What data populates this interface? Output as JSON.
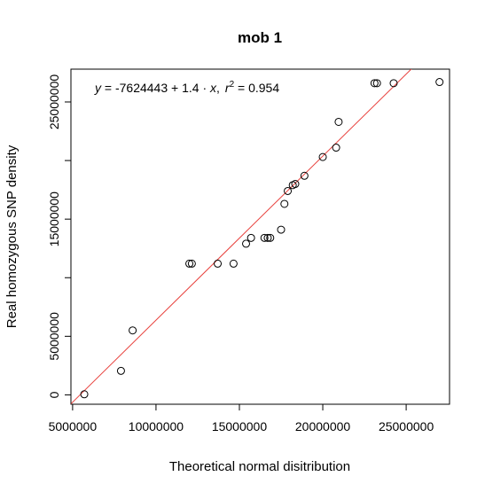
{
  "chart_data": {
    "type": "scatter",
    "title": "mob 1",
    "xlabel": "Theoretical normal disitribution",
    "ylabel": "Real homozygous SNP density",
    "xlim": [
      4900000,
      27600000
    ],
    "ylim": [
      -800000,
      27800000
    ],
    "xticks": [
      5000000,
      10000000,
      15000000,
      20000000,
      25000000
    ],
    "xtick_labels": [
      "5000000",
      "10000000",
      "15000000",
      "20000000",
      "25000000"
    ],
    "yticks": [
      0,
      5000000,
      15000000,
      25000000
    ],
    "ytick_labels": [
      "0",
      "5000000",
      "15000000",
      "25000000"
    ],
    "grid": false,
    "points": [
      {
        "x": 5700000,
        "y": 50000
      },
      {
        "x": 7900000,
        "y": 2050000
      },
      {
        "x": 8600000,
        "y": 5500000
      },
      {
        "x": 12000000,
        "y": 11200000
      },
      {
        "x": 12150000,
        "y": 11200000
      },
      {
        "x": 13700000,
        "y": 11200000
      },
      {
        "x": 14650000,
        "y": 11200000
      },
      {
        "x": 15400000,
        "y": 12900000
      },
      {
        "x": 15700000,
        "y": 13400000
      },
      {
        "x": 16500000,
        "y": 13400000
      },
      {
        "x": 16700000,
        "y": 13400000
      },
      {
        "x": 16850000,
        "y": 13400000
      },
      {
        "x": 17500000,
        "y": 14100000
      },
      {
        "x": 17700000,
        "y": 16300000
      },
      {
        "x": 17900000,
        "y": 17400000
      },
      {
        "x": 18200000,
        "y": 17900000
      },
      {
        "x": 18350000,
        "y": 18000000
      },
      {
        "x": 18900000,
        "y": 18700000
      },
      {
        "x": 20000000,
        "y": 20300000
      },
      {
        "x": 20800000,
        "y": 21100000
      },
      {
        "x": 20950000,
        "y": 23300000
      },
      {
        "x": 23100000,
        "y": 26600000
      },
      {
        "x": 23250000,
        "y": 26600000
      },
      {
        "x": 24250000,
        "y": 26600000
      },
      {
        "x": 27000000,
        "y": 26700000
      }
    ],
    "fit_line": {
      "intercept": -7624443,
      "slope": 1.4,
      "color": "#e8413d"
    },
    "equation": {
      "y_label": "y",
      "eq_sign": " = ",
      "body": "-7624443 + 1.4 · ",
      "x_label": "x",
      "comma": ",",
      "r_label": "r",
      "r_sup": "2",
      "r_value": " = 0.954"
    },
    "point_color": "#000000"
  }
}
